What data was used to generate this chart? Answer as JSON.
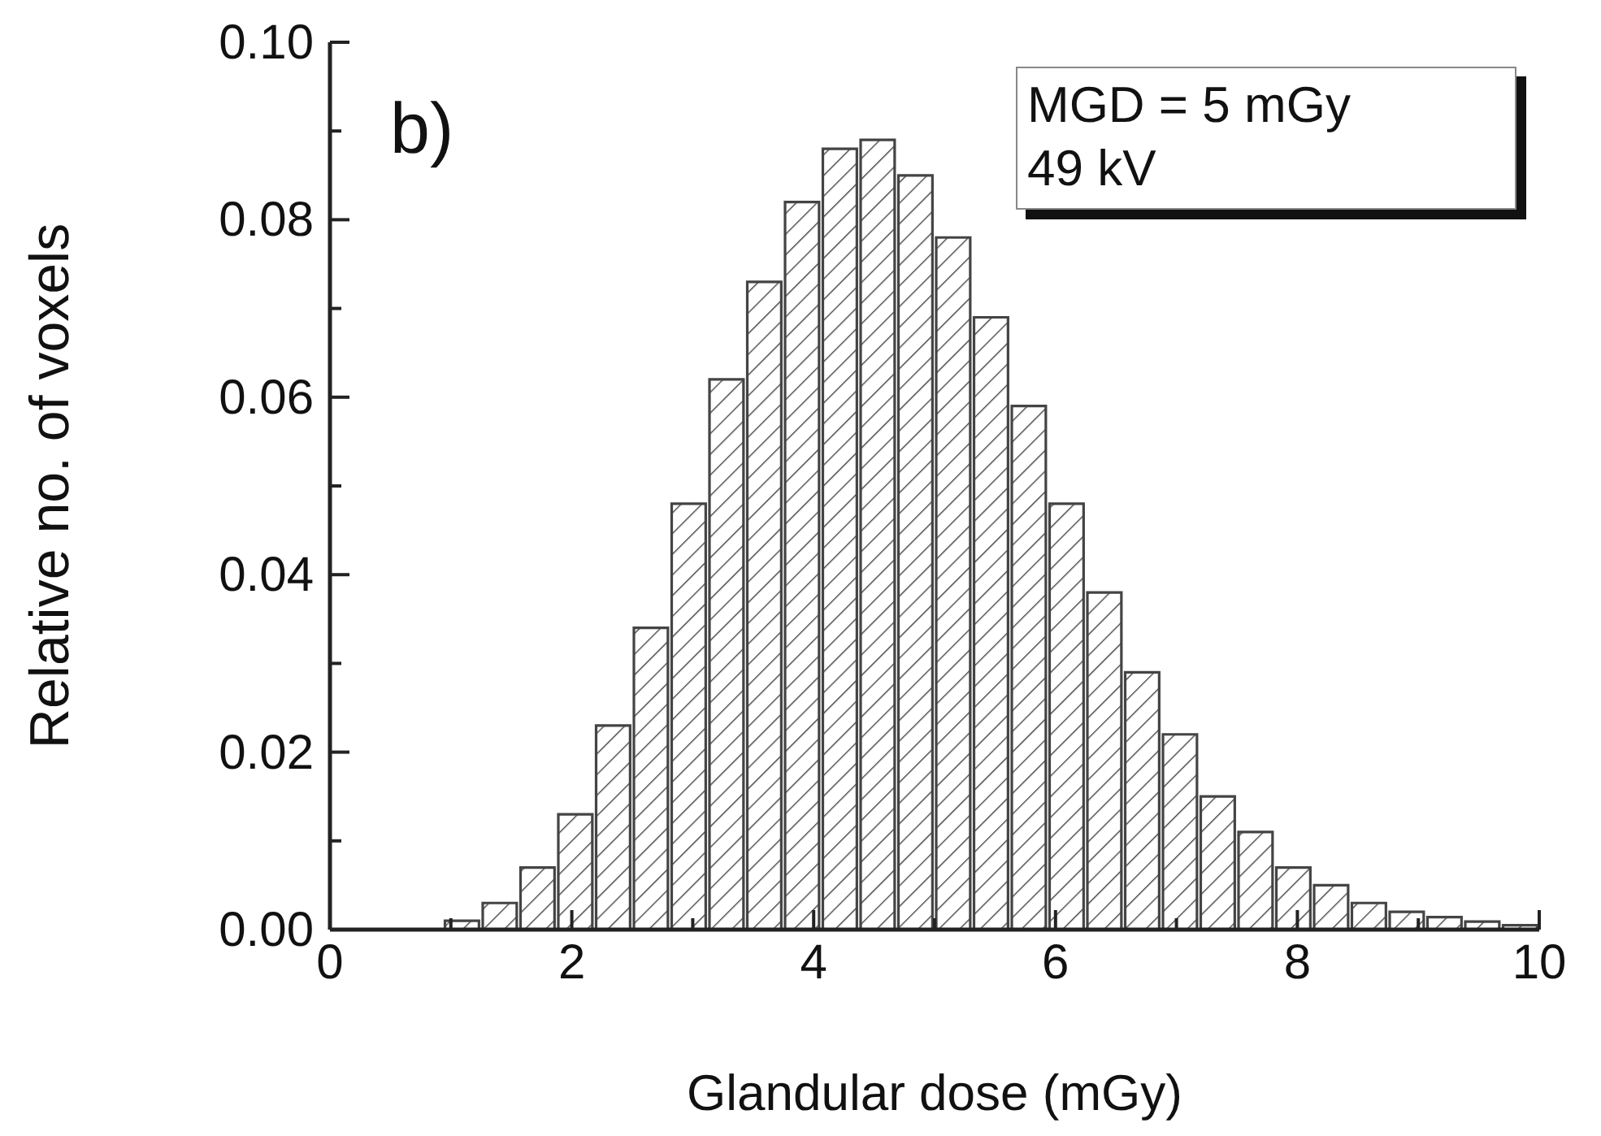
{
  "chart_data": {
    "type": "histogram",
    "xlabel": "Glandular dose (mGy)",
    "ylabel": "Relative no. of voxels",
    "annotations": [
      "b)",
      "MGD = 5 mGy",
      "49 kV"
    ],
    "bins": [
      0.9375,
      1.25,
      1.5625,
      1.875,
      2.1875,
      2.5,
      2.8125,
      3.125,
      3.4375,
      3.75,
      4.0625,
      4.375,
      4.6875,
      5.0,
      5.3125,
      5.625,
      5.9375,
      6.25,
      6.5625,
      6.875,
      7.1875,
      7.5,
      7.8125,
      8.125,
      8.4375,
      8.75,
      9.0625,
      9.375,
      9.6875,
      10.0
    ],
    "values": [
      0.001,
      0.003,
      0.007,
      0.013,
      0.023,
      0.034,
      0.048,
      0.062,
      0.073,
      0.082,
      0.088,
      0.089,
      0.085,
      0.078,
      0.069,
      0.059,
      0.048,
      0.038,
      0.029,
      0.022,
      0.015,
      0.011,
      0.007,
      0.005,
      0.003,
      0.002,
      0.0014,
      0.0009,
      0.0005
    ],
    "color": "#444444",
    "xlim": [
      0,
      10
    ],
    "xticks": [
      {
        "value": 0,
        "label": "0"
      },
      {
        "value": 1,
        "label": null
      },
      {
        "value": 2,
        "label": "2"
      },
      {
        "value": 3,
        "label": null
      },
      {
        "value": 4,
        "label": "4"
      },
      {
        "value": 5,
        "label": null
      },
      {
        "value": 6,
        "label": "6"
      },
      {
        "value": 7,
        "label": null
      },
      {
        "value": 8,
        "label": "8"
      },
      {
        "value": 9,
        "label": null
      },
      {
        "value": 10,
        "label": "10"
      }
    ],
    "ylim": [
      0,
      0.1
    ],
    "yticks": [
      {
        "value": 0,
        "label": "0.00"
      },
      {
        "value": 0.01,
        "label": null
      },
      {
        "value": 0.02,
        "label": "0.02"
      },
      {
        "value": 0.03,
        "label": null
      },
      {
        "value": 0.04,
        "label": "0.04"
      },
      {
        "value": 0.05,
        "label": null
      },
      {
        "value": 0.06,
        "label": "0.06"
      },
      {
        "value": 0.07,
        "label": null
      },
      {
        "value": 0.08,
        "label": "0.08"
      },
      {
        "value": 0.09,
        "label": null
      },
      {
        "value": 0.1,
        "label": "0.10"
      }
    ],
    "grid": false
  }
}
